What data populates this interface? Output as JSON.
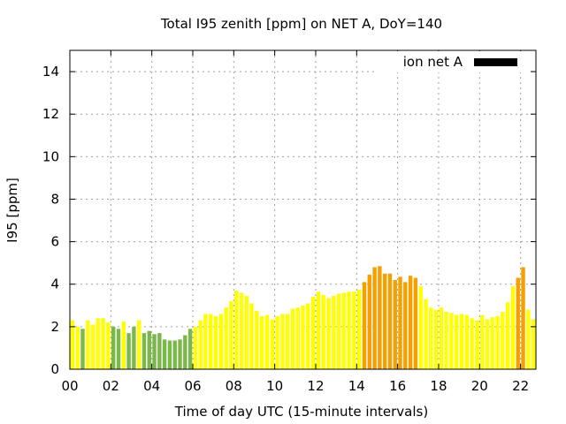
{
  "chart_data": {
    "type": "bar",
    "title": "Total I95 zenith [ppm] on NET A, DoY=140",
    "xlabel": "Time of day UTC (15-minute intervals)",
    "ylabel": "I95 [ppm]",
    "xlim": [
      0,
      22.75
    ],
    "ylim": [
      0,
      15
    ],
    "grid": true,
    "legend": {
      "position": "top-right",
      "entries": [
        {
          "label": "ion net A",
          "color": "#000000"
        }
      ]
    },
    "x_ticks": [
      {
        "value": 0,
        "label": "00"
      },
      {
        "value": 2,
        "label": "02"
      },
      {
        "value": 4,
        "label": "04"
      },
      {
        "value": 6,
        "label": "06"
      },
      {
        "value": 8,
        "label": "08"
      },
      {
        "value": 10,
        "label": "10"
      },
      {
        "value": 12,
        "label": "12"
      },
      {
        "value": 14,
        "label": "14"
      },
      {
        "value": 16,
        "label": "16"
      },
      {
        "value": 18,
        "label": "18"
      },
      {
        "value": 20,
        "label": "20"
      },
      {
        "value": 22,
        "label": "22"
      }
    ],
    "y_ticks": [
      {
        "value": 0,
        "label": "0"
      },
      {
        "value": 2,
        "label": "2"
      },
      {
        "value": 4,
        "label": "4"
      },
      {
        "value": 6,
        "label": "6"
      },
      {
        "value": 8,
        "label": "8"
      },
      {
        "value": 10,
        "label": "10"
      },
      {
        "value": 12,
        "label": "12"
      },
      {
        "value": 14,
        "label": "14"
      }
    ],
    "colors": {
      "low": "#ffff00",
      "green": "#7bb84a",
      "mid": "#ffff1a",
      "orange": "#f5a000"
    },
    "bar_width_hours": 0.19,
    "bars": [
      {
        "x": 0.0,
        "value": 2.3,
        "color": "#ffff00"
      },
      {
        "x": 0.25,
        "value": 2.0,
        "color": "#ffff00"
      },
      {
        "x": 0.5,
        "value": 1.9,
        "color": "#7bb84a"
      },
      {
        "x": 0.75,
        "value": 2.3,
        "color": "#ffff00"
      },
      {
        "x": 1.0,
        "value": 2.1,
        "color": "#ffff00"
      },
      {
        "x": 1.25,
        "value": 2.4,
        "color": "#ffff00"
      },
      {
        "x": 1.5,
        "value": 2.4,
        "color": "#ffff00"
      },
      {
        "x": 1.75,
        "value": 2.2,
        "color": "#ffff00"
      },
      {
        "x": 2.0,
        "value": 2.0,
        "color": "#7bb84a"
      },
      {
        "x": 2.25,
        "value": 1.9,
        "color": "#7bb84a"
      },
      {
        "x": 2.5,
        "value": 2.25,
        "color": "#ffff00"
      },
      {
        "x": 2.75,
        "value": 1.7,
        "color": "#7bb84a"
      },
      {
        "x": 3.0,
        "value": 2.0,
        "color": "#7bb84a"
      },
      {
        "x": 3.25,
        "value": 2.3,
        "color": "#ffff00"
      },
      {
        "x": 3.5,
        "value": 1.7,
        "color": "#7bb84a"
      },
      {
        "x": 3.75,
        "value": 1.8,
        "color": "#7bb84a"
      },
      {
        "x": 4.0,
        "value": 1.65,
        "color": "#7bb84a"
      },
      {
        "x": 4.25,
        "value": 1.7,
        "color": "#7bb84a"
      },
      {
        "x": 4.5,
        "value": 1.4,
        "color": "#7bb84a"
      },
      {
        "x": 4.75,
        "value": 1.35,
        "color": "#7bb84a"
      },
      {
        "x": 5.0,
        "value": 1.35,
        "color": "#7bb84a"
      },
      {
        "x": 5.25,
        "value": 1.4,
        "color": "#7bb84a"
      },
      {
        "x": 5.5,
        "value": 1.6,
        "color": "#7bb84a"
      },
      {
        "x": 5.75,
        "value": 1.9,
        "color": "#7bb84a"
      },
      {
        "x": 6.0,
        "value": 2.0,
        "color": "#ffff00"
      },
      {
        "x": 6.25,
        "value": 2.3,
        "color": "#ffff00"
      },
      {
        "x": 6.5,
        "value": 2.6,
        "color": "#ffff00"
      },
      {
        "x": 6.75,
        "value": 2.6,
        "color": "#ffff00"
      },
      {
        "x": 7.0,
        "value": 2.5,
        "color": "#ffff00"
      },
      {
        "x": 7.25,
        "value": 2.6,
        "color": "#ffff00"
      },
      {
        "x": 7.5,
        "value": 2.9,
        "color": "#ffff00"
      },
      {
        "x": 7.75,
        "value": 3.2,
        "color": "#ffff00"
      },
      {
        "x": 8.0,
        "value": 3.7,
        "color": "#ffff00"
      },
      {
        "x": 8.25,
        "value": 3.6,
        "color": "#ffff00"
      },
      {
        "x": 8.5,
        "value": 3.45,
        "color": "#ffff00"
      },
      {
        "x": 8.75,
        "value": 3.1,
        "color": "#ffff00"
      },
      {
        "x": 9.0,
        "value": 2.75,
        "color": "#ffff00"
      },
      {
        "x": 9.25,
        "value": 2.5,
        "color": "#ffff00"
      },
      {
        "x": 9.5,
        "value": 2.55,
        "color": "#ffff00"
      },
      {
        "x": 9.75,
        "value": 2.35,
        "color": "#ffff00"
      },
      {
        "x": 10.0,
        "value": 2.5,
        "color": "#ffff00"
      },
      {
        "x": 10.25,
        "value": 2.6,
        "color": "#ffff00"
      },
      {
        "x": 10.5,
        "value": 2.6,
        "color": "#ffff00"
      },
      {
        "x": 10.75,
        "value": 2.85,
        "color": "#ffff00"
      },
      {
        "x": 11.0,
        "value": 2.9,
        "color": "#ffff00"
      },
      {
        "x": 11.25,
        "value": 3.0,
        "color": "#ffff00"
      },
      {
        "x": 11.5,
        "value": 3.1,
        "color": "#ffff00"
      },
      {
        "x": 11.75,
        "value": 3.4,
        "color": "#ffff00"
      },
      {
        "x": 12.0,
        "value": 3.65,
        "color": "#ffff00"
      },
      {
        "x": 12.25,
        "value": 3.5,
        "color": "#ffff00"
      },
      {
        "x": 12.5,
        "value": 3.35,
        "color": "#ffff00"
      },
      {
        "x": 12.75,
        "value": 3.45,
        "color": "#ffff00"
      },
      {
        "x": 13.0,
        "value": 3.55,
        "color": "#ffff00"
      },
      {
        "x": 13.25,
        "value": 3.6,
        "color": "#ffff00"
      },
      {
        "x": 13.5,
        "value": 3.65,
        "color": "#ffff00"
      },
      {
        "x": 13.75,
        "value": 3.65,
        "color": "#ffff00"
      },
      {
        "x": 14.0,
        "value": 3.75,
        "color": "#ffff00"
      },
      {
        "x": 14.25,
        "value": 4.1,
        "color": "#f5a000"
      },
      {
        "x": 14.5,
        "value": 4.45,
        "color": "#f5a000"
      },
      {
        "x": 14.75,
        "value": 4.8,
        "color": "#f5a000"
      },
      {
        "x": 15.0,
        "value": 4.85,
        "color": "#f5a000"
      },
      {
        "x": 15.25,
        "value": 4.5,
        "color": "#f5a000"
      },
      {
        "x": 15.5,
        "value": 4.5,
        "color": "#f5a000"
      },
      {
        "x": 15.75,
        "value": 4.2,
        "color": "#f5a000"
      },
      {
        "x": 16.0,
        "value": 4.35,
        "color": "#f5a000"
      },
      {
        "x": 16.25,
        "value": 4.1,
        "color": "#f5a000"
      },
      {
        "x": 16.5,
        "value": 4.4,
        "color": "#f5a000"
      },
      {
        "x": 16.75,
        "value": 4.3,
        "color": "#f5a000"
      },
      {
        "x": 17.0,
        "value": 3.9,
        "color": "#ffff00"
      },
      {
        "x": 17.25,
        "value": 3.3,
        "color": "#ffff00"
      },
      {
        "x": 17.5,
        "value": 2.9,
        "color": "#ffff00"
      },
      {
        "x": 17.75,
        "value": 2.8,
        "color": "#ffff00"
      },
      {
        "x": 18.0,
        "value": 2.9,
        "color": "#ffff00"
      },
      {
        "x": 18.25,
        "value": 2.7,
        "color": "#ffff00"
      },
      {
        "x": 18.5,
        "value": 2.65,
        "color": "#ffff00"
      },
      {
        "x": 18.75,
        "value": 2.55,
        "color": "#ffff00"
      },
      {
        "x": 19.0,
        "value": 2.6,
        "color": "#ffff00"
      },
      {
        "x": 19.25,
        "value": 2.55,
        "color": "#ffff00"
      },
      {
        "x": 19.5,
        "value": 2.4,
        "color": "#ffff00"
      },
      {
        "x": 19.75,
        "value": 2.3,
        "color": "#ffff00"
      },
      {
        "x": 20.0,
        "value": 2.55,
        "color": "#ffff00"
      },
      {
        "x": 20.25,
        "value": 2.35,
        "color": "#ffff00"
      },
      {
        "x": 20.5,
        "value": 2.45,
        "color": "#ffff00"
      },
      {
        "x": 20.75,
        "value": 2.5,
        "color": "#ffff00"
      },
      {
        "x": 21.0,
        "value": 2.7,
        "color": "#ffff00"
      },
      {
        "x": 21.25,
        "value": 3.15,
        "color": "#ffff00"
      },
      {
        "x": 21.5,
        "value": 3.9,
        "color": "#ffff00"
      },
      {
        "x": 21.75,
        "value": 4.3,
        "color": "#f5a000"
      },
      {
        "x": 22.0,
        "value": 4.8,
        "color": "#f5a000"
      },
      {
        "x": 22.25,
        "value": 2.8,
        "color": "#ffff00"
      },
      {
        "x": 22.5,
        "value": 2.35,
        "color": "#ffff00"
      }
    ]
  }
}
